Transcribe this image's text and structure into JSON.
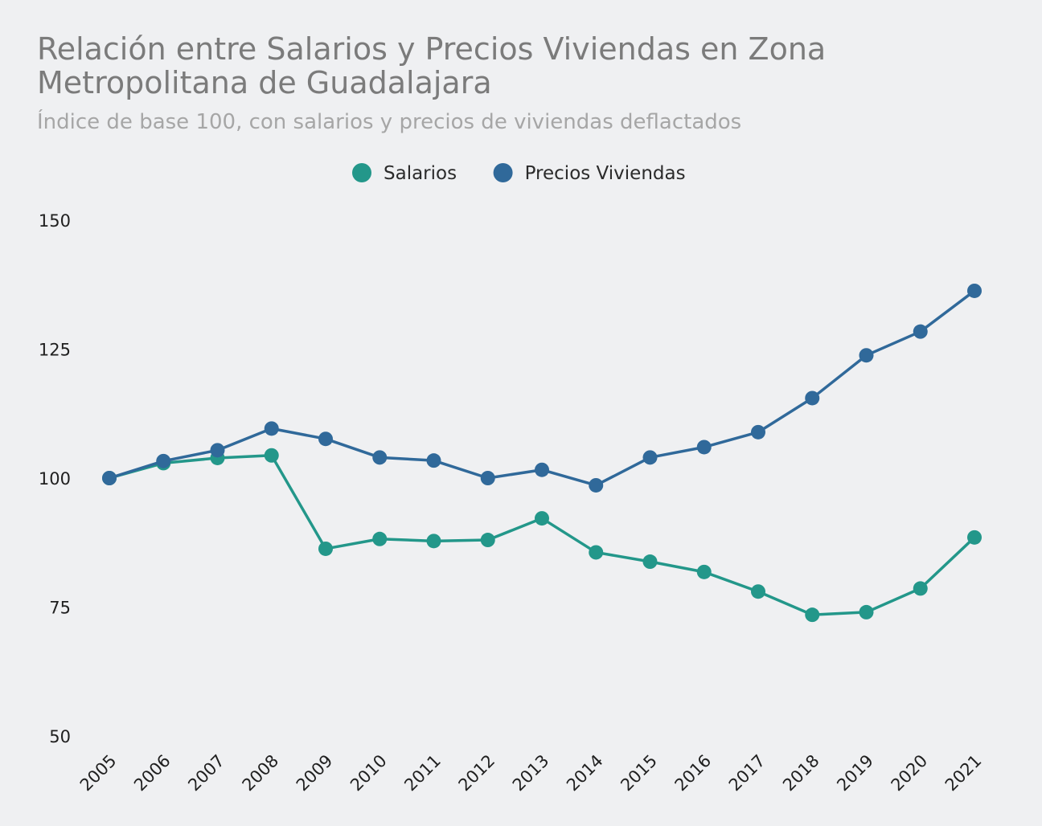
{
  "chart_data": {
    "type": "line",
    "title": "Relación entre Salarios y Precios Viviendas en Zona Metropolitana de Guadalajara",
    "subtitle": "Índice de base 100, con salarios y precios de viviendas deflactados",
    "xlabel": "",
    "ylabel": "",
    "x": [
      "2005",
      "2006",
      "2007",
      "2008",
      "2009",
      "2010",
      "2011",
      "2012",
      "2013",
      "2014",
      "2015",
      "2016",
      "2017",
      "2018",
      "2019",
      "2020",
      "2021"
    ],
    "ylim": [
      50,
      150
    ],
    "yticks": [
      50,
      75,
      100,
      125,
      150
    ],
    "grid": false,
    "legend_position": "top-center",
    "series": [
      {
        "name": "Salarios",
        "color": "#23978a",
        "values": [
          100,
          102.9,
          103.9,
          104.4,
          86.3,
          88.2,
          87.8,
          88.0,
          92.2,
          85.6,
          83.8,
          81.8,
          78.0,
          73.5,
          74.0,
          78.6,
          88.5
        ]
      },
      {
        "name": "Precios Viviendas",
        "color": "#30699a",
        "values": [
          100,
          103.3,
          105.4,
          109.6,
          107.6,
          104.0,
          103.4,
          100.0,
          101.6,
          98.6,
          104.0,
          106.0,
          108.9,
          115.5,
          123.8,
          128.4,
          136.3
        ]
      }
    ]
  }
}
